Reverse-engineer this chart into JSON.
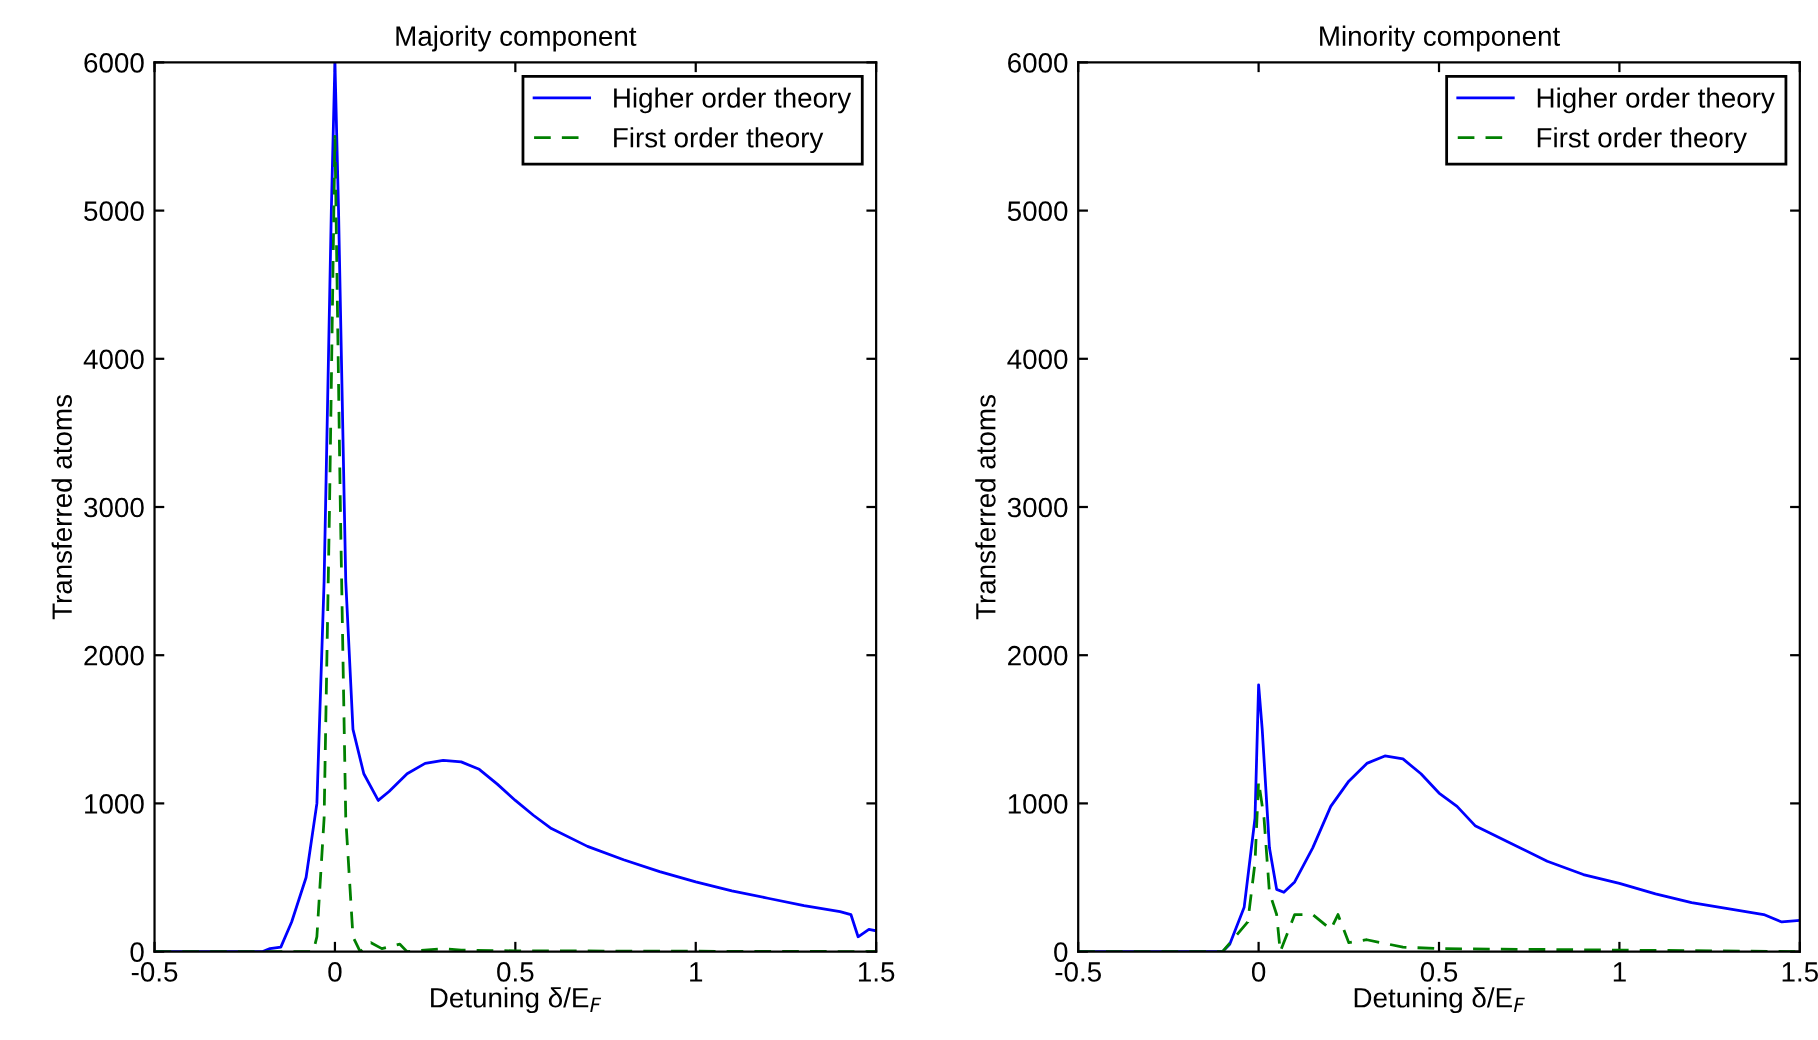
{
  "chart_data": [
    {
      "type": "line",
      "title": "Majority component",
      "xlabel": "Detuning δ/E$_{F}$",
      "ylabel": "Transferred atoms",
      "xlim": [
        -0.5,
        1.5
      ],
      "ylim": [
        0,
        6000
      ],
      "xticks": [
        {
          "value": -0.5,
          "label": "-0.5"
        },
        0,
        0.5,
        1,
        1.5
      ],
      "yticks": [
        0,
        1000,
        2000,
        3000,
        4000,
        5000,
        6000
      ],
      "legend": "top right",
      "grid": false,
      "series": [
        {
          "name": "Higher order theory",
          "color": "#0000ff",
          "line_style": "solid",
          "x": [
            -0.5,
            -0.2,
            -0.18,
            -0.15,
            -0.12,
            -0.08,
            -0.05,
            -0.03,
            -0.01,
            0,
            0.01,
            0.03,
            0.05,
            0.08,
            0.12,
            0.15,
            0.2,
            0.25,
            0.3,
            0.35,
            0.4,
            0.45,
            0.5,
            0.55,
            0.6,
            0.7,
            0.8,
            0.9,
            1.0,
            1.1,
            1.2,
            1.3,
            1.4,
            1.43,
            1.45,
            1.48,
            1.5
          ],
          "values": [
            0,
            0,
            20,
            30,
            200,
            500,
            1000,
            2500,
            5000,
            6000,
            5000,
            2500,
            1500,
            1200,
            1020,
            1080,
            1200,
            1270,
            1290,
            1280,
            1230,
            1130,
            1020,
            920,
            830,
            710,
            620,
            540,
            470,
            410,
            360,
            310,
            270,
            250,
            100,
            150,
            140
          ]
        },
        {
          "name": "First order theory",
          "color": "#008000",
          "line_style": "dashed",
          "x": [
            -0.5,
            -0.06,
            -0.05,
            -0.03,
            -0.015,
            0,
            0.015,
            0.03,
            0.05,
            0.07,
            0.1,
            0.13,
            0.18,
            0.2,
            0.3,
            0.35,
            0.5,
            1.5
          ],
          "values": [
            0,
            0,
            100,
            900,
            3000,
            5500,
            3000,
            900,
            100,
            0,
            60,
            20,
            50,
            0,
            20,
            10,
            5,
            0
          ]
        }
      ]
    },
    {
      "type": "line",
      "title": "Minority component",
      "xlabel": "Detuning δ/E$_{F}$",
      "ylabel": "Transferred atoms",
      "xlim": [
        -0.5,
        1.5
      ],
      "ylim": [
        0,
        6000
      ],
      "xticks": [
        {
          "value": -0.5,
          "label": "-0.5"
        },
        0,
        0.5,
        1,
        1.5
      ],
      "yticks": [
        0,
        1000,
        2000,
        3000,
        4000,
        5000,
        6000
      ],
      "legend": "top right",
      "grid": false,
      "series": [
        {
          "name": "Higher order theory",
          "color": "#0000ff",
          "line_style": "solid",
          "x": [
            -0.5,
            -0.1,
            -0.08,
            -0.04,
            -0.01,
            0,
            0.01,
            0.03,
            0.05,
            0.07,
            0.1,
            0.15,
            0.2,
            0.25,
            0.3,
            0.35,
            0.4,
            0.45,
            0.5,
            0.55,
            0.6,
            0.7,
            0.8,
            0.9,
            1.0,
            1.1,
            1.2,
            1.3,
            1.4,
            1.45,
            1.5
          ],
          "values": [
            0,
            0,
            50,
            300,
            900,
            1800,
            1500,
            700,
            420,
            400,
            470,
            700,
            980,
            1150,
            1270,
            1320,
            1300,
            1200,
            1070,
            980,
            850,
            730,
            610,
            520,
            460,
            390,
            330,
            290,
            250,
            200,
            210
          ]
        },
        {
          "name": "First order theory",
          "color": "#008000",
          "line_style": "dashed",
          "x": [
            -0.5,
            -0.1,
            -0.03,
            -0.01,
            0,
            0.015,
            0.03,
            0.05,
            0.06,
            0.1,
            0.15,
            0.2,
            0.22,
            0.25,
            0.3,
            0.4,
            0.5,
            1.5
          ],
          "values": [
            0,
            0,
            200,
            600,
            1150,
            900,
            400,
            250,
            0,
            250,
            250,
            150,
            250,
            60,
            80,
            30,
            20,
            0
          ]
        }
      ]
    }
  ]
}
